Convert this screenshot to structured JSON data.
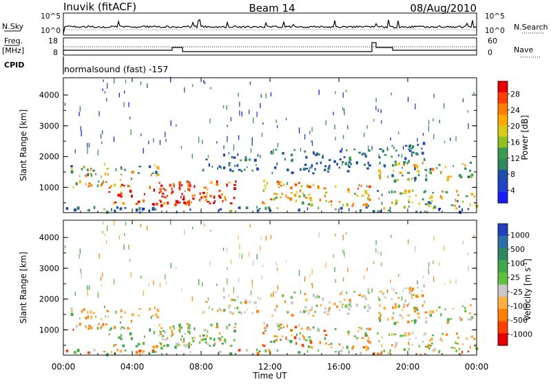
{
  "header": {
    "station": "Inuvik (fitACF)",
    "beam": "Beam 14",
    "date": "08/Aug/2010"
  },
  "status_panels": {
    "nsky_label": "N.Sky",
    "nsky_ticks": [
      "10^5",
      "10^0"
    ],
    "nsearch_label": "N.Search",
    "nsearch_ticks": [
      "10^5",
      "10^0"
    ],
    "freq_label_top": "Freq.",
    "freq_label_unit": "[MHz]",
    "freq_ticks": [
      "18",
      "8"
    ],
    "nave_label": "Nave",
    "nave_ticks": [
      "60",
      "0"
    ],
    "cpid_label": "CPID",
    "cpid_text": "normalsound (fast) -157"
  },
  "chart_data": [
    {
      "type": "heatmap",
      "name": "power-panel",
      "ylabel": "Slant Range [km]",
      "yticks": [
        "4000",
        "3000",
        "2000",
        "1000"
      ],
      "ylim": [
        180,
        4560
      ],
      "xlim_hours": [
        0,
        24
      ],
      "colorbar": {
        "label": "Power [dB]",
        "ticks": [
          "28",
          "24",
          "20",
          "16",
          "12",
          "8",
          "4"
        ],
        "colors": [
          "#e60000",
          "#ff3f00",
          "#ff7d00",
          "#ffaa00",
          "#d8cc19",
          "#8fc21f",
          "#3a9a50",
          "#2e8a5e",
          "#1e4fa8",
          "#2244c8",
          "#1a1aff"
        ]
      }
    },
    {
      "type": "heatmap",
      "name": "velocity-panel",
      "ylabel": "Slant Range [km]",
      "yticks": [
        "4000",
        "3000",
        "2000",
        "1000"
      ],
      "ylim": [
        180,
        4560
      ],
      "xlim_hours": [
        0,
        24
      ],
      "colorbar": {
        "label": "Velocity",
        "label_unit": "[m s",
        "label_sup": "-1",
        "label_close": "]",
        "ticks": [
          "1000",
          "500",
          "100",
          "25",
          "-25",
          "-100",
          "-500",
          "-1000"
        ],
        "colors": [
          "#2040c0",
          "#2d6ea8",
          "#2e8a5e",
          "#3fa84a",
          "#60c040",
          "#c8c8c8",
          "#ffb040",
          "#ff8000",
          "#ff4000",
          "#e60000"
        ]
      }
    }
  ],
  "xaxis": {
    "ticks": [
      "00:00",
      "04:00",
      "08:00",
      "12:00",
      "16:00",
      "20:00",
      "00:00"
    ],
    "label": "Time UT"
  }
}
